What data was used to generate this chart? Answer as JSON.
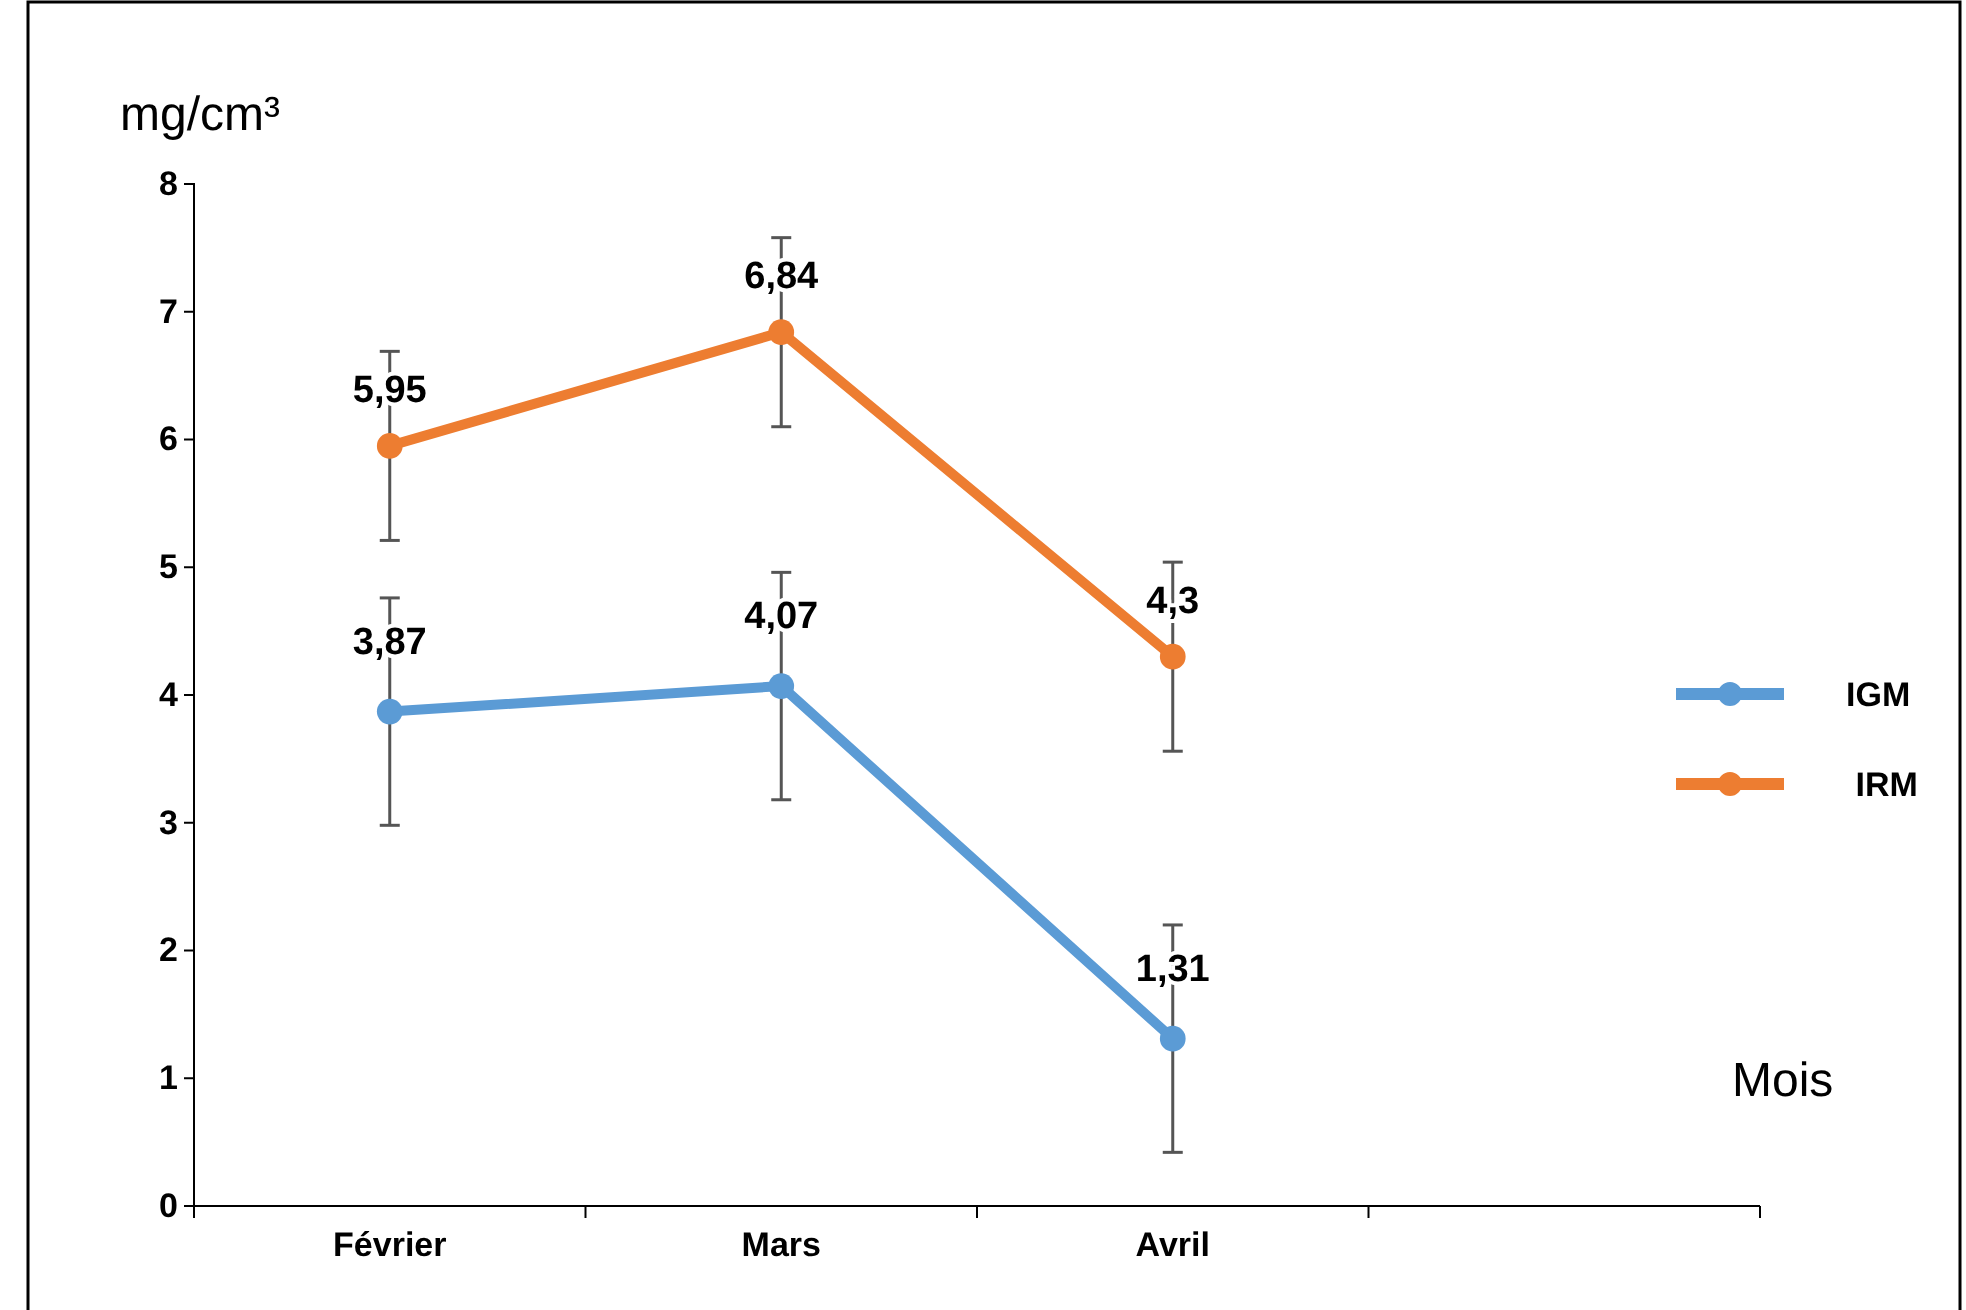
{
  "chart_data": {
    "type": "line",
    "ylabel": "mg/cm³",
    "xlabel": "Mois",
    "categories": [
      "Février",
      "Mars",
      "Avril",
      null
    ],
    "series": [
      {
        "name": "IGM",
        "color": "#5b9bd5",
        "values": [
          3.87,
          4.07,
          1.31,
          null
        ],
        "errors": [
          0.89,
          0.89,
          0.89,
          null
        ],
        "value_labels": [
          "3,87",
          "4,07",
          "1,31",
          null
        ]
      },
      {
        "name": " IRM",
        "color": "#ed7d31",
        "values": [
          5.95,
          6.84,
          4.3,
          null
        ],
        "errors": [
          0.74,
          0.74,
          0.74,
          null
        ],
        "value_labels": [
          "5,95",
          "6,84",
          "4,3",
          null
        ]
      }
    ],
    "ylim": [
      0,
      8
    ],
    "yticks": [
      0,
      1,
      2,
      3,
      4,
      5,
      6,
      7,
      8
    ],
    "grid": false,
    "legend": "right",
    "marker": "circle",
    "line_style": "solid"
  }
}
